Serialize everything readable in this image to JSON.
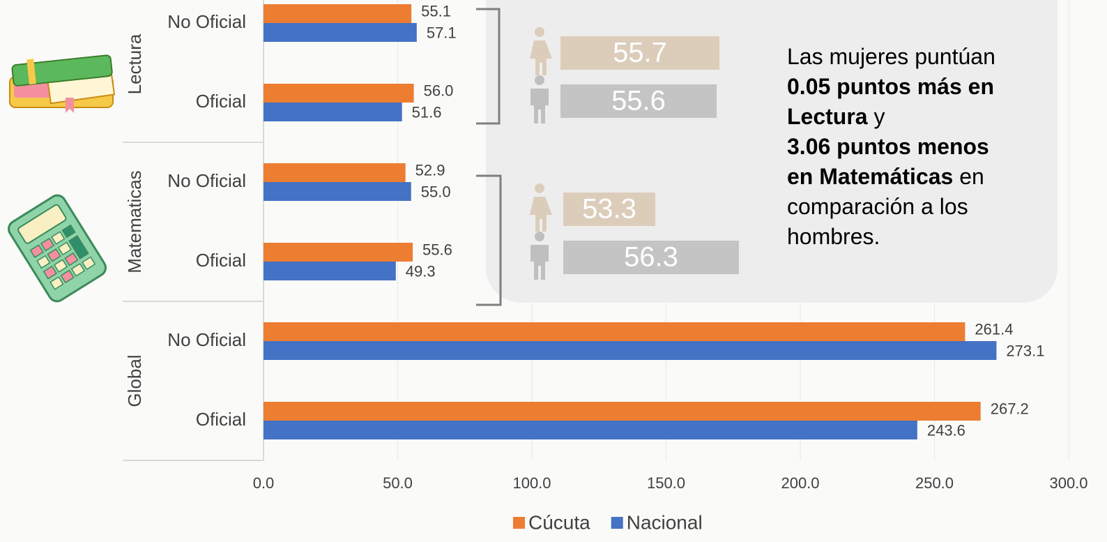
{
  "chart_data": {
    "type": "bar",
    "orientation": "horizontal",
    "groups": [
      "Lectura",
      "Matematicas",
      "Global"
    ],
    "categories": [
      "No Oficial",
      "Oficial",
      "No Oficial",
      "Oficial",
      "No Oficial",
      "Oficial"
    ],
    "series": [
      {
        "name": "Cúcuta",
        "color": "#ed7d31",
        "values": [
          55.1,
          56.0,
          52.9,
          55.6,
          261.4,
          267.2
        ],
        "value_labels": [
          "55.1",
          "56.0",
          "52.9",
          "55.6",
          "261.4",
          "267.2"
        ]
      },
      {
        "name": "Nacional",
        "color": "#4472c4",
        "values": [
          57.1,
          51.6,
          55.0,
          49.3,
          273.1,
          243.6
        ],
        "value_labels": [
          "57.1",
          "51.6",
          "55.0",
          "49.3",
          "273.1",
          "243.6"
        ]
      }
    ],
    "xlim": [
      0,
      300
    ],
    "xticks": [
      {
        "value": 0,
        "label": "0.0"
      },
      {
        "value": 50,
        "label": "50.0"
      },
      {
        "value": 100,
        "label": "100.0"
      },
      {
        "value": 150,
        "label": "150.0"
      },
      {
        "value": 200,
        "label": "200.0"
      },
      {
        "value": 250,
        "label": "250.0"
      },
      {
        "value": 300,
        "label": "300.0"
      }
    ],
    "grid": true,
    "legend": "bottom"
  },
  "gender_panel": {
    "rows": [
      {
        "value": 55.7,
        "label": "55.7",
        "color": "#dccdbb"
      },
      {
        "value": 55.6,
        "label": "55.6",
        "color": "#c4c4c4"
      },
      {
        "value": 53.3,
        "label": "53.3",
        "color": "#dccdbb"
      },
      {
        "value": 56.3,
        "label": "56.3",
        "color": "#c4c4c4"
      }
    ]
  },
  "note": [
    [
      {
        "text": "Las mujeres puntúan",
        "bold": false
      }
    ],
    [
      {
        "text": "0.05 puntos más en",
        "bold": true
      }
    ],
    [
      {
        "text": "Lectura",
        "bold": true
      },
      {
        "text": " y",
        "bold": false
      }
    ],
    [
      {
        "text": "3.06 puntos menos",
        "bold": true
      }
    ],
    [
      {
        "text": "en Matemáticas",
        "bold": true
      },
      {
        "text": " en",
        "bold": false
      }
    ],
    [
      {
        "text": "comparación a los",
        "bold": false
      }
    ],
    [
      {
        "text": "hombres.",
        "bold": false
      }
    ]
  ]
}
